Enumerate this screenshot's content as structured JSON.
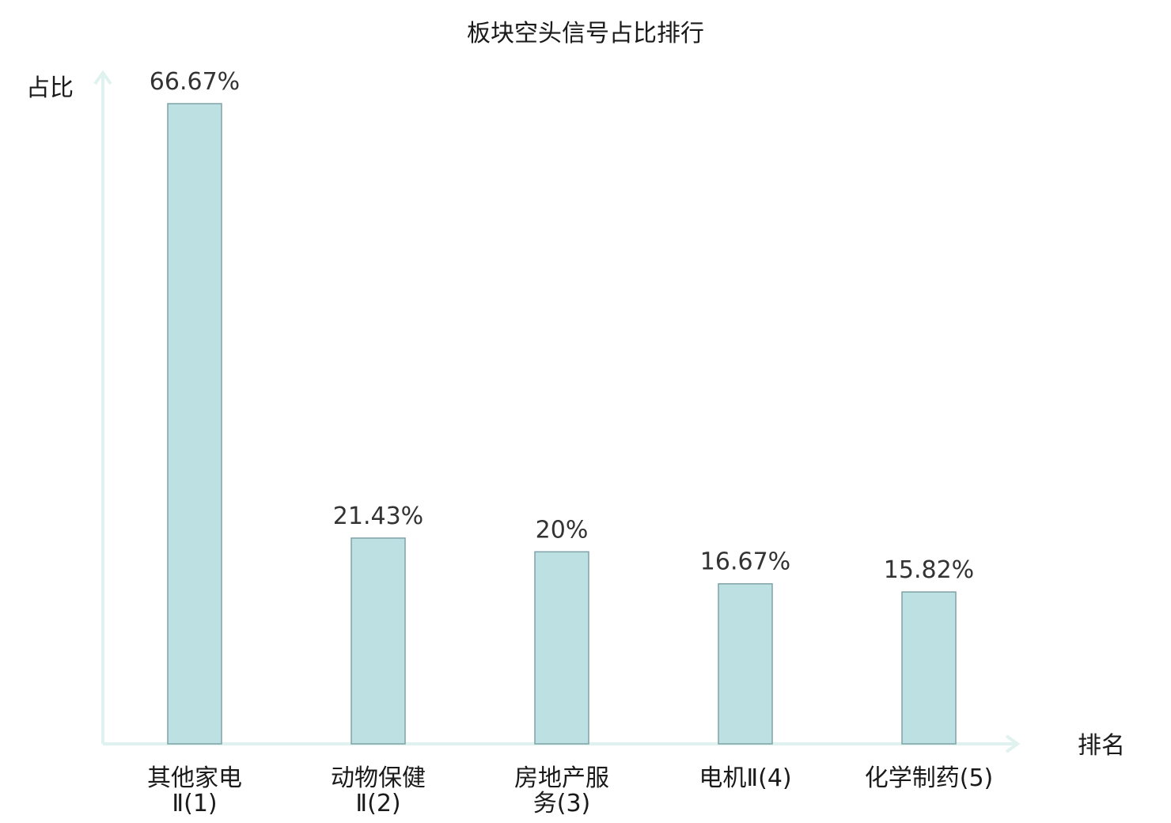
{
  "chart_data": {
    "type": "bar",
    "title": "板块空头信号占比排行",
    "xlabel": "排名",
    "ylabel": "占比",
    "categories": [
      [
        "其他家电",
        "Ⅱ(1)"
      ],
      [
        "动物保健",
        "Ⅱ(2)"
      ],
      [
        "房地产服",
        "务(3)"
      ],
      [
        "电机Ⅱ(4)"
      ],
      [
        "化学制药(5)"
      ]
    ],
    "values": [
      66.67,
      21.43,
      20,
      16.67,
      15.82
    ],
    "value_labels": [
      "66.67%",
      "21.43%",
      "20%",
      "16.67%",
      "15.82%"
    ],
    "ylim": [
      0,
      66.67
    ],
    "grid": false,
    "legend": "none",
    "highlight_index": 0
  },
  "colors": {
    "bar_fill": "#bde0e2",
    "bar_stroke": "#7fa3a6",
    "axis": "#e0f2ef",
    "highlight_text": "#e02020",
    "text": "#1a1a1a",
    "value_text": "#333333"
  }
}
